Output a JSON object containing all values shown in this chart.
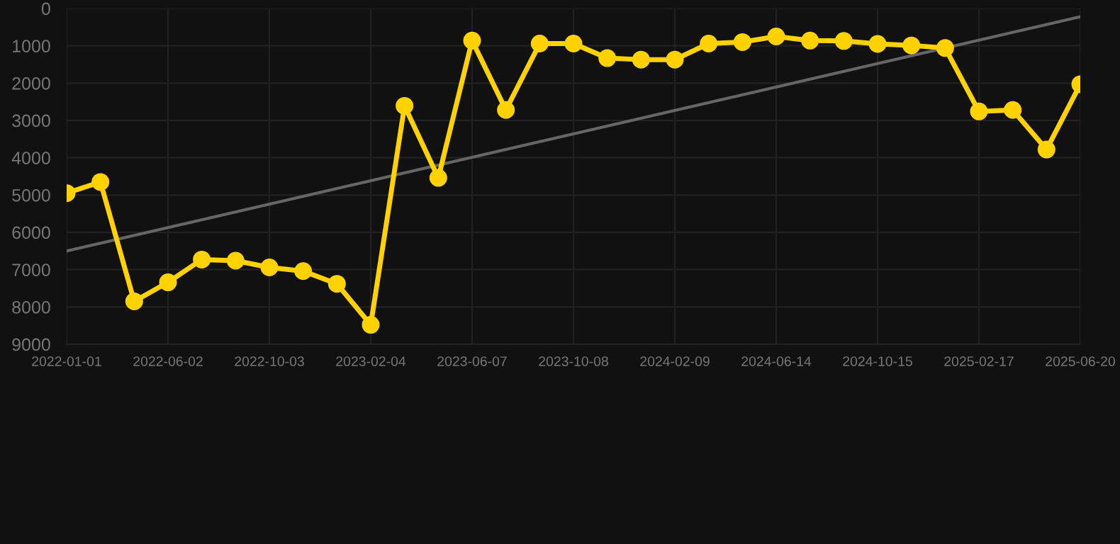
{
  "chart_data": {
    "type": "line",
    "categories": [
      "2022-01-01",
      null,
      null,
      "2022-06-02",
      null,
      null,
      "2022-10-03",
      null,
      null,
      "2023-02-04",
      null,
      null,
      "2023-06-07",
      null,
      null,
      "2023-10-08",
      null,
      null,
      "2024-02-09",
      null,
      null,
      "2024-06-14",
      null,
      null,
      "2024-10-15",
      null,
      null,
      "2025-02-17",
      null,
      null,
      "2025-06-20"
    ],
    "series": [
      {
        "color": "#ffd200",
        "marker": "circle",
        "values": [
          4950,
          4650,
          7850,
          7340,
          6730,
          6760,
          6940,
          7040,
          7380,
          8480,
          2610,
          4540,
          860,
          2720,
          940,
          940,
          1330,
          1370,
          1370,
          940,
          900,
          750,
          860,
          870,
          950,
          990,
          1060,
          2760,
          2720,
          3780,
          2030
        ]
      },
      {
        "type": "line",
        "color": "#666666",
        "marker": "none",
        "values": [
          6500,
          null,
          null,
          null,
          null,
          null,
          null,
          null,
          null,
          null,
          null,
          null,
          null,
          null,
          null,
          null,
          null,
          null,
          null,
          null,
          null,
          null,
          null,
          null,
          null,
          null,
          null,
          null,
          null,
          null,
          220
        ]
      }
    ],
    "ylim": [
      9000,
      0
    ],
    "yticks": [
      0,
      1000,
      2000,
      3000,
      4000,
      5000,
      6000,
      7000,
      8000,
      9000
    ],
    "grid": true,
    "line_style": "solid"
  }
}
